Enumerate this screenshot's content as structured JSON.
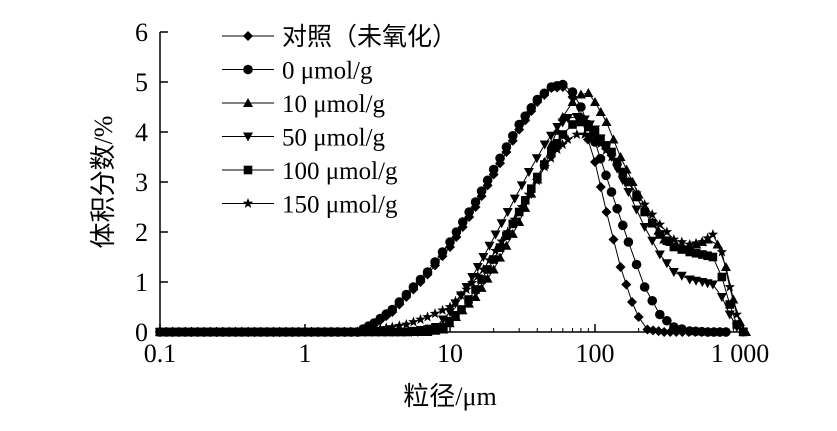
{
  "chart_data": {
    "type": "line",
    "xlabel": "粒径/μm",
    "ylabel": "体积分数/%",
    "xscale": "log",
    "xlim": [
      0.1,
      1000
    ],
    "ylim": [
      0,
      6
    ],
    "x_ticks": [
      0.1,
      1,
      10,
      100,
      1000
    ],
    "x_tick_labels": [
      "0.1",
      "1",
      "10",
      "100",
      "1 000"
    ],
    "y_ticks": [
      0,
      1,
      2,
      3,
      4,
      5,
      6
    ],
    "y_tick_labels": [
      "0",
      "1",
      "2",
      "3",
      "4",
      "5",
      "6"
    ],
    "legend_position": "top-right",
    "series": [
      {
        "name": "对照（未氧化）",
        "marker": "diamond",
        "points": [
          [
            0.1,
            0
          ],
          [
            0.3,
            0
          ],
          [
            1,
            0
          ],
          [
            2.3,
            0
          ],
          [
            3,
            0.15
          ],
          [
            4,
            0.4
          ],
          [
            5,
            0.7
          ],
          [
            7,
            1.15
          ],
          [
            10,
            1.7
          ],
          [
            15,
            2.5
          ],
          [
            20,
            3.15
          ],
          [
            30,
            4.05
          ],
          [
            40,
            4.6
          ],
          [
            50,
            4.88
          ],
          [
            60,
            4.9
          ],
          [
            70,
            4.7
          ],
          [
            80,
            4.3
          ],
          [
            100,
            3.4
          ],
          [
            120,
            2.4
          ],
          [
            150,
            1.3
          ],
          [
            180,
            0.6
          ],
          [
            200,
            0.3
          ],
          [
            230,
            0.05
          ],
          [
            300,
            0
          ],
          [
            400,
            0
          ],
          [
            600,
            0
          ],
          [
            800,
            0
          ]
        ]
      },
      {
        "name": "0 μmol/g",
        "marker": "circle",
        "points": [
          [
            0.1,
            0
          ],
          [
            0.3,
            0
          ],
          [
            1,
            0
          ],
          [
            2.3,
            0
          ],
          [
            3,
            0.18
          ],
          [
            4,
            0.45
          ],
          [
            5,
            0.75
          ],
          [
            7,
            1.2
          ],
          [
            10,
            1.8
          ],
          [
            15,
            2.6
          ],
          [
            20,
            3.25
          ],
          [
            30,
            4.15
          ],
          [
            40,
            4.65
          ],
          [
            50,
            4.9
          ],
          [
            60,
            4.95
          ],
          [
            70,
            4.8
          ],
          [
            80,
            4.5
          ],
          [
            100,
            3.8
          ],
          [
            130,
            2.8
          ],
          [
            170,
            1.8
          ],
          [
            220,
            0.9
          ],
          [
            280,
            0.35
          ],
          [
            350,
            0.1
          ],
          [
            450,
            0.02
          ],
          [
            600,
            0
          ],
          [
            800,
            0
          ]
        ]
      },
      {
        "name": "10 μmol/g",
        "marker": "triangle-up",
        "points": [
          [
            0.1,
            0
          ],
          [
            0.3,
            0
          ],
          [
            1,
            0
          ],
          [
            5,
            0
          ],
          [
            7,
            0
          ],
          [
            9,
            0.05
          ],
          [
            11,
            0.3
          ],
          [
            15,
            0.7
          ],
          [
            20,
            1.25
          ],
          [
            30,
            2.2
          ],
          [
            40,
            3.05
          ],
          [
            50,
            3.75
          ],
          [
            60,
            4.3
          ],
          [
            70,
            4.6
          ],
          [
            80,
            4.75
          ],
          [
            90,
            4.78
          ],
          [
            100,
            4.6
          ],
          [
            120,
            4.2
          ],
          [
            150,
            3.5
          ],
          [
            200,
            2.75
          ],
          [
            250,
            2.2
          ],
          [
            300,
            1.85
          ],
          [
            400,
            1.7
          ],
          [
            500,
            1.75
          ],
          [
            600,
            1.85
          ],
          [
            700,
            1.75
          ],
          [
            800,
            1.3
          ],
          [
            900,
            0.65
          ],
          [
            1000,
            0.2
          ],
          [
            1100,
            0
          ]
        ]
      },
      {
        "name": "50 μmol/g",
        "marker": "triangle-down",
        "points": [
          [
            0.1,
            0
          ],
          [
            0.3,
            0
          ],
          [
            1,
            0
          ],
          [
            4,
            0
          ],
          [
            6,
            0
          ],
          [
            8,
            0.1
          ],
          [
            10,
            0.4
          ],
          [
            13,
            0.9
          ],
          [
            17,
            1.5
          ],
          [
            25,
            2.4
          ],
          [
            35,
            3.2
          ],
          [
            45,
            3.75
          ],
          [
            55,
            4.1
          ],
          [
            65,
            4.28
          ],
          [
            75,
            4.3
          ],
          [
            85,
            4.25
          ],
          [
            100,
            4.05
          ],
          [
            130,
            3.5
          ],
          [
            170,
            2.8
          ],
          [
            220,
            2.1
          ],
          [
            280,
            1.55
          ],
          [
            350,
            1.2
          ],
          [
            450,
            1.05
          ],
          [
            550,
            1.0
          ],
          [
            650,
            0.95
          ],
          [
            750,
            0.7
          ],
          [
            850,
            0.35
          ],
          [
            950,
            0.1
          ],
          [
            1050,
            0
          ]
        ]
      },
      {
        "name": "100 μmol/g",
        "marker": "square",
        "points": [
          [
            0.1,
            0
          ],
          [
            0.3,
            0
          ],
          [
            1,
            0
          ],
          [
            5,
            0
          ],
          [
            7,
            0.05
          ],
          [
            9,
            0.1
          ],
          [
            12,
            0.45
          ],
          [
            15,
            0.85
          ],
          [
            20,
            1.45
          ],
          [
            30,
            2.4
          ],
          [
            40,
            3.1
          ],
          [
            50,
            3.6
          ],
          [
            60,
            3.95
          ],
          [
            70,
            4.15
          ],
          [
            80,
            4.2
          ],
          [
            90,
            4.1
          ],
          [
            100,
            4.0
          ],
          [
            130,
            3.6
          ],
          [
            170,
            3.0
          ],
          [
            220,
            2.4
          ],
          [
            280,
            1.95
          ],
          [
            350,
            1.7
          ],
          [
            450,
            1.6
          ],
          [
            550,
            1.55
          ],
          [
            650,
            1.5
          ],
          [
            750,
            1.1
          ],
          [
            850,
            0.55
          ],
          [
            950,
            0.15
          ],
          [
            1050,
            0
          ]
        ]
      },
      {
        "name": "150 μmol/g",
        "marker": "star",
        "points": [
          [
            0.1,
            0
          ],
          [
            0.3,
            0
          ],
          [
            1,
            0
          ],
          [
            2.3,
            0
          ],
          [
            3,
            0.05
          ],
          [
            4,
            0.1
          ],
          [
            5,
            0.15
          ],
          [
            7,
            0.3
          ],
          [
            10,
            0.5
          ],
          [
            13,
            0.85
          ],
          [
            17,
            1.25
          ],
          [
            25,
            2.0
          ],
          [
            35,
            2.75
          ],
          [
            45,
            3.3
          ],
          [
            55,
            3.65
          ],
          [
            65,
            3.85
          ],
          [
            75,
            3.95
          ],
          [
            85,
            3.95
          ],
          [
            100,
            3.9
          ],
          [
            130,
            3.5
          ],
          [
            170,
            3.0
          ],
          [
            220,
            2.55
          ],
          [
            280,
            2.15
          ],
          [
            350,
            1.85
          ],
          [
            450,
            1.75
          ],
          [
            550,
            1.8
          ],
          [
            650,
            1.95
          ],
          [
            750,
            1.6
          ],
          [
            850,
            0.9
          ],
          [
            950,
            0.35
          ],
          [
            1050,
            0.05
          ]
        ]
      }
    ]
  }
}
